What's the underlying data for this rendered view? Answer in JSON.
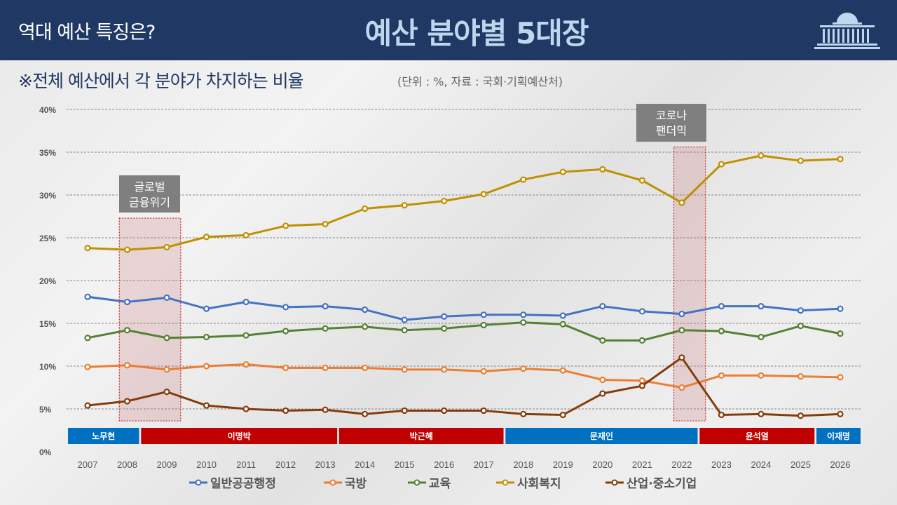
{
  "header": {
    "subtitle": "역대 예산 특징은?",
    "title": "예산 분야별 5대장",
    "logo_icon": "national-assembly-icon"
  },
  "note": "※전체 예산에서 각 분야가 차지하는 비율",
  "unit": "(단위 : %, 자료 : 국회·기획예산처)",
  "chart_data": {
    "type": "line",
    "x": [
      2007,
      2008,
      2009,
      2010,
      2011,
      2012,
      2013,
      2014,
      2015,
      2016,
      2017,
      2018,
      2019,
      2020,
      2021,
      2022,
      2023,
      2024,
      2025,
      2026
    ],
    "ylim": [
      0,
      40
    ],
    "yticks": [
      "0%",
      "5%",
      "10%",
      "15%",
      "20%",
      "25%",
      "30%",
      "35%",
      "40%"
    ],
    "grid": true,
    "legend_position": "bottom",
    "series": [
      {
        "name": "일반공공행정",
        "color": "#4472c4",
        "values": [
          18.1,
          17.5,
          18.0,
          16.7,
          17.5,
          16.9,
          17.0,
          16.6,
          15.4,
          15.8,
          16.0,
          16.0,
          15.9,
          17.0,
          16.4,
          16.1,
          17.0,
          17.0,
          16.5,
          16.7
        ]
      },
      {
        "name": "국방",
        "color": "#ed7d31",
        "values": [
          9.9,
          10.1,
          9.6,
          10.0,
          10.2,
          9.8,
          9.8,
          9.8,
          9.6,
          9.6,
          9.4,
          9.7,
          9.5,
          8.4,
          8.3,
          7.5,
          8.9,
          8.9,
          8.8,
          8.7
        ]
      },
      {
        "name": "교육",
        "color": "#548235",
        "values": [
          13.3,
          14.2,
          13.3,
          13.4,
          13.6,
          14.1,
          14.4,
          14.6,
          14.2,
          14.4,
          14.8,
          15.1,
          14.9,
          13.0,
          13.0,
          14.2,
          14.1,
          13.4,
          14.7,
          13.8
        ]
      },
      {
        "name": "사회복지",
        "color": "#bf9000",
        "values": [
          23.8,
          23.6,
          23.9,
          25.1,
          25.3,
          26.4,
          26.6,
          28.4,
          28.8,
          29.3,
          30.1,
          31.8,
          32.7,
          33.0,
          31.7,
          29.1,
          33.6,
          34.6,
          34.0,
          34.2
        ]
      },
      {
        "name": "산업·중소기업",
        "color": "#843c0c",
        "values": [
          5.4,
          5.9,
          7.0,
          5.4,
          5.0,
          4.8,
          4.9,
          4.4,
          4.8,
          4.8,
          4.8,
          4.4,
          4.3,
          6.8,
          7.7,
          11.0,
          4.3,
          4.4,
          4.2,
          4.4
        ]
      }
    ],
    "eras": [
      {
        "label": "노무현",
        "color": "#0070c0",
        "from": 2006.5,
        "to": 2008.3
      },
      {
        "label": "이명박",
        "color": "#c00000",
        "from": 2008.35,
        "to": 2013.3
      },
      {
        "label": "박근혜",
        "color": "#c00000",
        "from": 2013.35,
        "to": 2017.5
      },
      {
        "label": "문재인",
        "color": "#0070c0",
        "from": 2017.55,
        "to": 2022.4
      },
      {
        "label": "윤석열",
        "color": "#c00000",
        "from": 2022.45,
        "to": 2025.35
      },
      {
        "label": "이재명",
        "color": "#0070c0",
        "from": 2025.4,
        "to": 2026.5
      }
    ],
    "annotations": [
      {
        "label": [
          "글로벌",
          "금융위기"
        ],
        "from": 2007.8,
        "to": 2009.35,
        "top": 27.3
      },
      {
        "label": [
          "코로나",
          "팬더믹"
        ],
        "from": 2021.8,
        "to": 2022.6,
        "top": 35.6
      }
    ]
  }
}
